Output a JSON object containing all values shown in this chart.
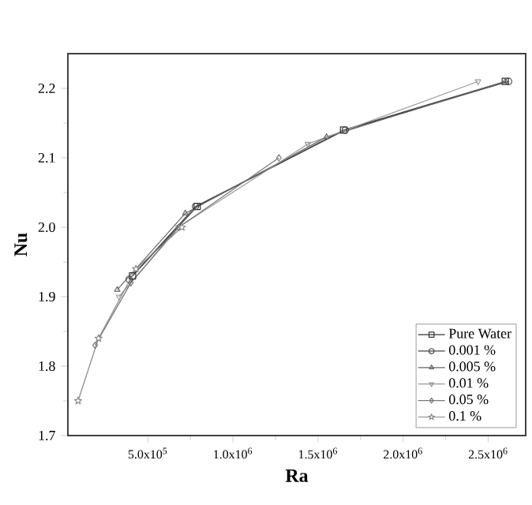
{
  "chart_data": {
    "type": "line",
    "xlabel": "Ra",
    "ylabel": "Nu",
    "xlim": [
      30000,
      2720000
    ],
    "ylim": [
      1.7,
      2.25
    ],
    "xticks": [
      {
        "value": 500000,
        "label": "5.0x10$^{5}$"
      },
      {
        "value": 1000000,
        "label": "1.0x10$^{6}$"
      },
      {
        "value": 1500000,
        "label": "1.5x10$^{6}$"
      },
      {
        "value": 2000000,
        "label": "2.0x10$^{6}$"
      },
      {
        "value": 2500000,
        "label": "2.5x10$^{6}$"
      }
    ],
    "yticks": [
      1.7,
      1.8,
      1.9,
      {
        "value": 2.0,
        "label": "2.0"
      },
      2.1,
      2.2
    ],
    "legend": "bottom right",
    "grid": false,
    "line_style": "solid",
    "series": [
      {
        "name": "Pure Water",
        "color": "#333333",
        "marker": "square",
        "x": [
          410000,
          790000,
          1650000,
          2600000
        ],
        "values": [
          1.93,
          2.03,
          2.14,
          2.21
        ]
      },
      {
        "name": "0.001 %",
        "color": "#444444",
        "marker": "circle",
        "x": [
          390000,
          780000,
          1660000,
          2620000
        ],
        "values": [
          1.925,
          2.03,
          2.14,
          2.21
        ]
      },
      {
        "name": "0.005 %",
        "color": "#666666",
        "marker": "triangle",
        "x": [
          320000,
          720000,
          1550000,
          2600000
        ],
        "values": [
          1.91,
          2.02,
          2.13,
          2.21
        ]
      },
      {
        "name": "0.01 %",
        "color": "#999999",
        "marker": "triangle-down",
        "x": [
          330000,
          680000,
          1440000,
          2440000
        ],
        "values": [
          1.9,
          2.0,
          2.12,
          2.21
        ]
      },
      {
        "name": "0.05 %",
        "color": "#777777",
        "marker": "diamond",
        "x": [
          190000,
          400000,
          680000,
          1270000
        ],
        "values": [
          1.83,
          1.92,
          2.0,
          2.1
        ]
      },
      {
        "name": "0.1 %",
        "color": "#888888",
        "marker": "star",
        "x": [
          90000,
          210000,
          430000,
          700000
        ],
        "values": [
          1.75,
          1.84,
          1.94,
          2.0
        ]
      }
    ]
  }
}
